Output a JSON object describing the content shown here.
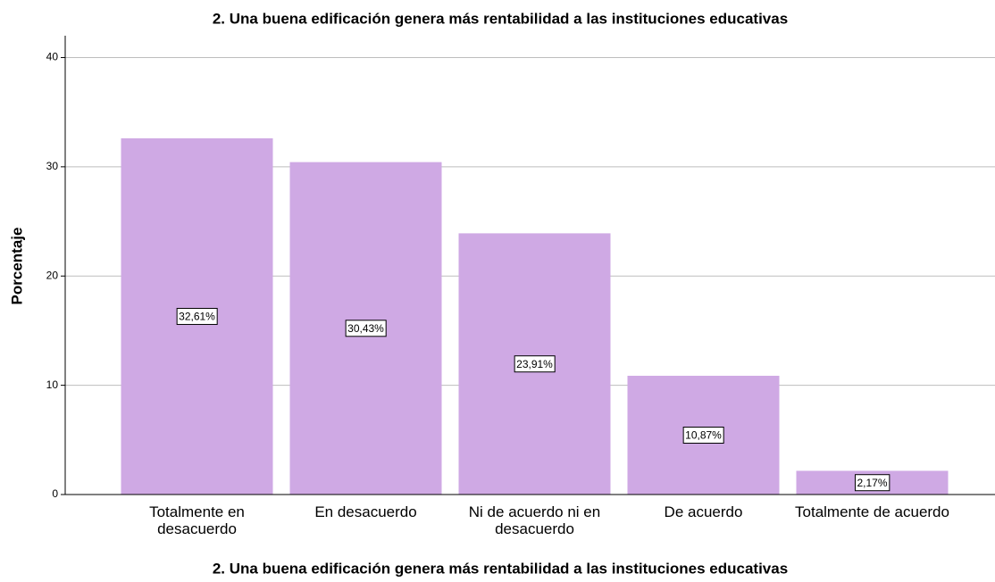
{
  "chart_data": {
    "type": "bar",
    "title": "2. Una buena edificación genera más rentabilidad a las instituciones educativas",
    "x_label": "2. Una buena edificación genera más rentabilidad a las instituciones educativas",
    "y_label": "Porcentaje",
    "categories": [
      "Totalmente en desacuerdo",
      "En desacuerdo",
      "Ni de acuerdo ni en desacuerdo",
      "De acuerdo",
      "Totalmente de acuerdo"
    ],
    "values": [
      32.61,
      30.43,
      23.91,
      10.87,
      2.17
    ],
    "value_labels": [
      "32,61%",
      "30,43%",
      "23,91%",
      "10,87%",
      "2,17%"
    ],
    "color": "#cfa9e4",
    "ylim": [
      0,
      42
    ],
    "yticks": [
      0,
      10,
      20,
      30,
      40
    ],
    "grid": true
  }
}
